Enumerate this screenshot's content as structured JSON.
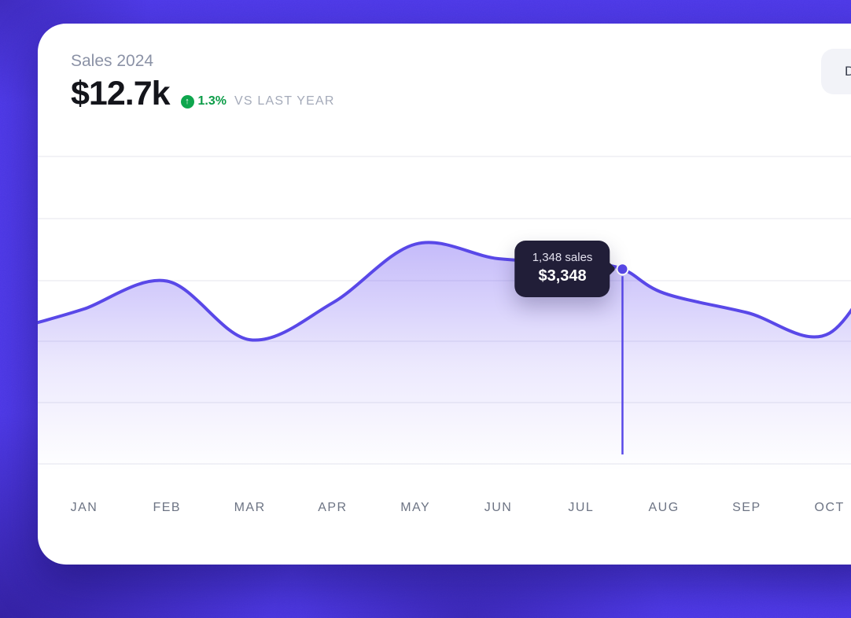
{
  "card": {
    "title": "Sales 2024",
    "total": "$12.7k",
    "trend_icon": "↑",
    "change": "1.3%",
    "comparison": "VS LAST YEAR",
    "action_label": "D"
  },
  "chart_data": {
    "type": "area",
    "title": "Sales 2024",
    "xlabel": "",
    "ylabel": "",
    "categories": [
      "JAN",
      "FEB",
      "MAR",
      "APR",
      "MAY",
      "JUN",
      "JUL",
      "AUG",
      "SEP",
      "OCT"
    ],
    "values": [
      2690,
      3150,
      2180,
      2790,
      3760,
      3520,
      3450,
      2950,
      2630,
      2290
    ],
    "edge_values": {
      "left": 2465,
      "right": 4000
    },
    "ylim": [
      0,
      5200
    ],
    "grid": true,
    "legend": false,
    "highlight": {
      "x_index": 6.5,
      "sales": 1348,
      "value": 3348,
      "sales_label": "1,348 sales",
      "value_label": "$3,348"
    },
    "colors": {
      "line": "#5948e8",
      "fill": "#6f56f2",
      "grid": "#edeef4"
    }
  },
  "colors": {
    "background": "#4c38e8",
    "positive": "#0ea64d",
    "tooltip_bg": "#211e38",
    "card_bg": "#ffffff"
  }
}
